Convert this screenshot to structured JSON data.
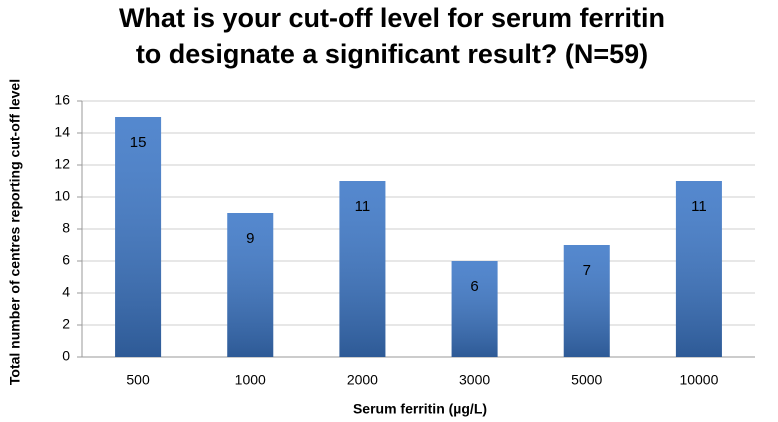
{
  "chart_data": {
    "type": "bar",
    "title": [
      "What is your cut-off level for serum ferritin",
      "to designate a significant result? (N=59)"
    ],
    "x_label": "Serum ferritin (µg/L)",
    "y_label": "Total number of centres reporting cut-off level",
    "categories": [
      "500",
      "1000",
      "2000",
      "3000",
      "5000",
      "10000"
    ],
    "values": [
      15,
      9,
      11,
      6,
      7,
      11
    ],
    "color": "#3d78c8",
    "ylim": [
      0,
      16
    ],
    "yticks": [
      0,
      2,
      4,
      6,
      8,
      10,
      12,
      14,
      16
    ],
    "grid": true,
    "data_labels": true
  }
}
